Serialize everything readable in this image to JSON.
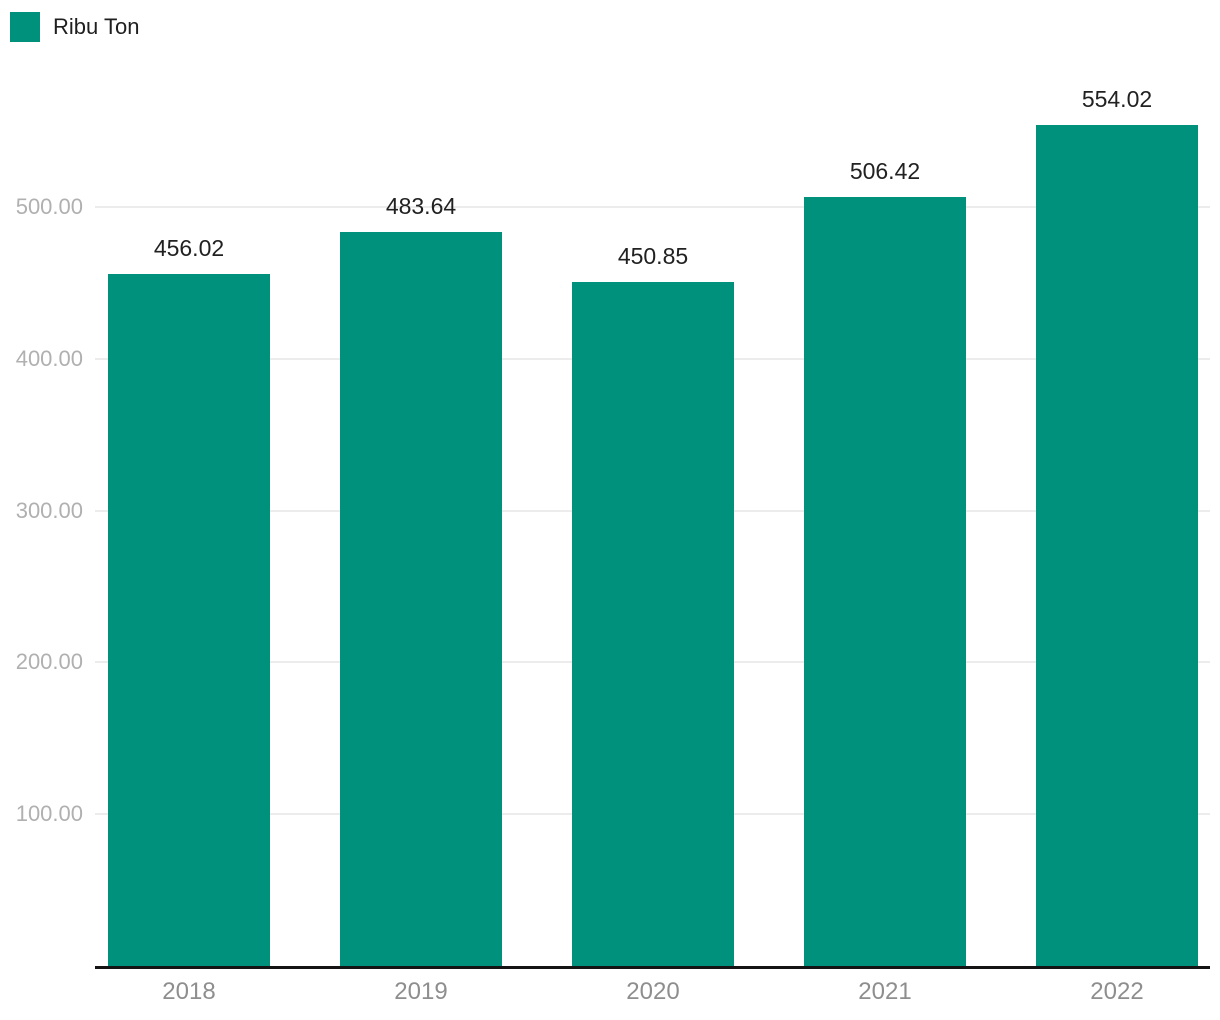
{
  "chart_data": {
    "type": "bar",
    "title": "",
    "categories": [
      "2018",
      "2019",
      "2020",
      "2021",
      "2022"
    ],
    "series": [
      {
        "name": "Ribu Ton",
        "values": [
          456.02,
          483.64,
          450.85,
          506.42,
          554.02
        ]
      }
    ],
    "value_labels": [
      "456.02",
      "483.64",
      "450.85",
      "506.42",
      "554.02"
    ],
    "y_axis": {
      "tick_values": [
        100,
        200,
        300,
        400,
        500
      ],
      "tick_labels": [
        "100.00",
        "200.00",
        "300.00",
        "400.00",
        "500.00"
      ],
      "range": [
        0,
        618
      ],
      "grid": true
    },
    "legend": {
      "position": "top-left",
      "items": [
        {
          "label": "Ribu Ton",
          "color": "#00917C"
        }
      ]
    },
    "colors": {
      "bar": "#00917C",
      "value_label": "#212121",
      "y_tick": "#b0b0b0",
      "x_tick": "#8e8e8e",
      "gridline": "#ececec",
      "axis_line": "#141414"
    }
  }
}
